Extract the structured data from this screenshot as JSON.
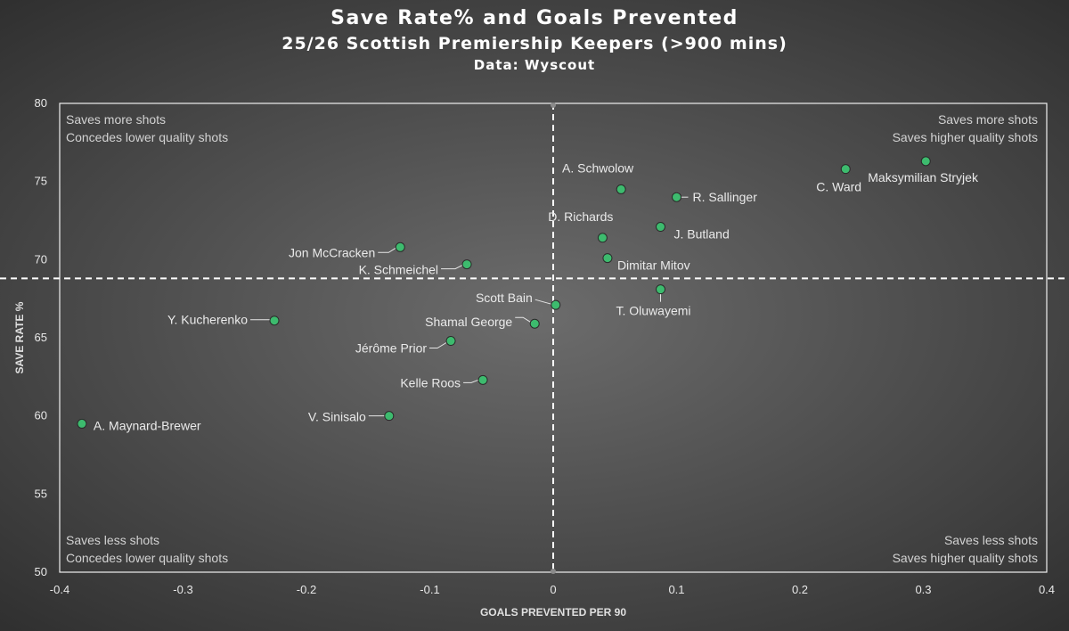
{
  "chart_data": {
    "type": "scatter",
    "title": "Save Rate% and Goals Prevented",
    "subtitle": "25/26 Scottish Premiership Keepers (>900 mins)",
    "source": "Data: Wyscout",
    "xlabel": "GOALS PREVENTED PER 90",
    "ylabel": "SAVE RATE %",
    "xlim": [
      -0.4,
      0.4
    ],
    "ylim": [
      50,
      80
    ],
    "xticks": [
      -0.4,
      -0.3,
      -0.2,
      -0.1,
      0,
      0.1,
      0.2,
      0.3,
      0.4
    ],
    "yticks": [
      50,
      55,
      60,
      65,
      70,
      75,
      80
    ],
    "xtick_labels": [
      "-0.4",
      "-0.3",
      "-0.2",
      "-0.1",
      "0",
      "0.1",
      "0.2",
      "0.3",
      "0.4"
    ],
    "ytick_labels": [
      "50",
      "55",
      "60",
      "65",
      "70",
      "75",
      "80"
    ],
    "reference_lines": {
      "x": 0.0,
      "y": 68.8
    },
    "grid": false,
    "marker_color": "#3dbb6e",
    "quadrant_labels": [
      {
        "position": "top-left",
        "line1": "Saves more shots",
        "line2": "Concedes lower quality shots"
      },
      {
        "position": "top-right",
        "line1": "Saves more shots",
        "line2": "Saves higher quality shots"
      },
      {
        "position": "bottom-left",
        "line1": "Saves less shots",
        "line2": "Concedes lower quality shots"
      },
      {
        "position": "bottom-right",
        "line1": "Saves less shots",
        "line2": "Saves higher quality shots"
      }
    ],
    "points": [
      {
        "name": "Maksymilian Stryjek",
        "x": 0.302,
        "y": 76.3
      },
      {
        "name": "C. Ward",
        "x": 0.237,
        "y": 75.8
      },
      {
        "name": "A. Schwolow",
        "x": 0.055,
        "y": 74.5
      },
      {
        "name": "R. Sallinger",
        "x": 0.1,
        "y": 74.0
      },
      {
        "name": "J. Butland",
        "x": 0.087,
        "y": 72.1
      },
      {
        "name": "D. Richards",
        "x": 0.04,
        "y": 71.4
      },
      {
        "name": "Dimitar Mitov",
        "x": 0.044,
        "y": 70.1
      },
      {
        "name": "Jon McCracken",
        "x": -0.124,
        "y": 70.8
      },
      {
        "name": "K. Schmeichel",
        "x": -0.07,
        "y": 69.7
      },
      {
        "name": "T. Oluwayemi",
        "x": 0.087,
        "y": 68.1
      },
      {
        "name": "Scott Bain",
        "x": 0.002,
        "y": 67.1
      },
      {
        "name": "Shamal George",
        "x": -0.015,
        "y": 65.9
      },
      {
        "name": "Y. Kucherenko",
        "x": -0.226,
        "y": 66.1
      },
      {
        "name": "Jérôme Prior",
        "x": -0.083,
        "y": 64.8
      },
      {
        "name": "Kelle Roos",
        "x": -0.057,
        "y": 62.3
      },
      {
        "name": "V. Sinisalo",
        "x": -0.133,
        "y": 60.0
      },
      {
        "name": "A. Maynard-Brewer",
        "x": -0.382,
        "y": 59.5
      }
    ]
  }
}
